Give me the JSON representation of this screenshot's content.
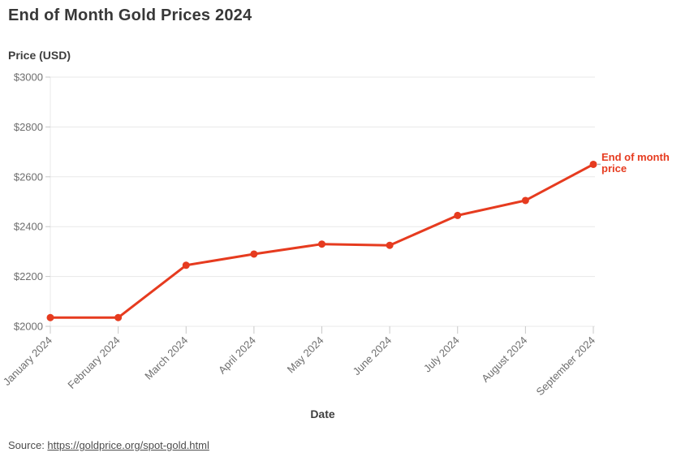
{
  "title": "End of Month Gold Prices 2024",
  "y_axis_title": "Price (USD)",
  "x_axis_title": "Date",
  "annotation": {
    "label": "End of month price"
  },
  "source": {
    "prefix": "Source: ",
    "link_text": "https://goldprice.org/spot-gold.html"
  },
  "colors": {
    "line": "#e63b1f",
    "grid": "#e8e8e8",
    "tick": "#c9c9c9",
    "tick_text": "#6e6e6e",
    "heading_text": "#3e3e3e",
    "source_text": "#4d4d4d",
    "connector": "#b0b0b0"
  },
  "chart_data": {
    "type": "line",
    "title": "End of Month Gold Prices 2024",
    "xlabel": "Date",
    "ylabel": "Price (USD)",
    "categories": [
      "January 2024",
      "February 2024",
      "March 2024",
      "April 2024",
      "May 2024",
      "June 2024",
      "July 2024",
      "August 2024",
      "September 2024"
    ],
    "series": [
      {
        "name": "End of month price",
        "values": [
          2035,
          2035,
          2245,
          2290,
          2330,
          2325,
          2445,
          2505,
          2650
        ]
      }
    ],
    "ylim": [
      2000,
      3000
    ],
    "yticks": [
      2000,
      2200,
      2400,
      2600,
      2800,
      3000
    ],
    "ytick_prefix": "$",
    "grid": "horizontal",
    "x_label_rotation": -45,
    "legend": "annotation-right-of-last-point"
  }
}
